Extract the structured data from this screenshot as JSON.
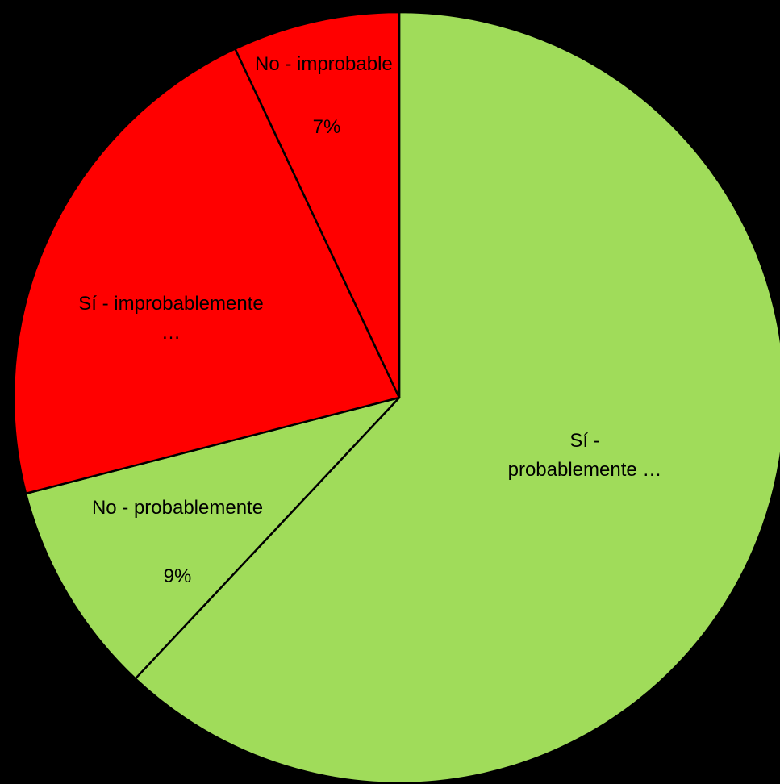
{
  "chart_data": {
    "type": "pie",
    "categories": [
      "Sí - probablemente …",
      "No - probablemente",
      "Sí - improbablemente …",
      "No - improbable"
    ],
    "values": [
      62,
      9,
      22,
      7
    ],
    "value_labels": [
      null,
      "9%",
      null,
      "7%"
    ],
    "colors": [
      "#a0dc5a",
      "#a0dc5a",
      "#ff0000",
      "#ff0000"
    ]
  }
}
